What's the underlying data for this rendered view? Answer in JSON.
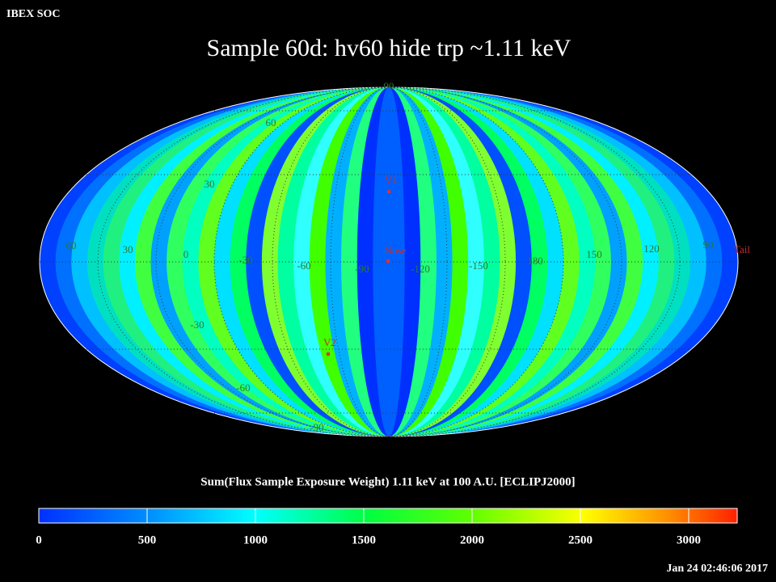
{
  "header": "IBEX SOC",
  "title": "Sample 60d: hv60 hide trp ~1.11 keV",
  "map": {
    "longitude_labels": [
      "60",
      "30",
      "0",
      "-30",
      "-60",
      "-90",
      "-120",
      "-150",
      "180",
      "150",
      "120",
      "90"
    ],
    "latitude_labels": [
      "90",
      "60",
      "30",
      "-30",
      "-60",
      "-90"
    ],
    "markers": [
      "V1",
      "Nose",
      "V2",
      "Tail"
    ]
  },
  "colorbar": {
    "label": "Sum(Flux Sample Exposure Weight)  1.11 keV at 100 A.U. [ECLIPJ2000]",
    "range": [
      0,
      3224
    ],
    "ticks": [
      0,
      500,
      1000,
      1500,
      2000,
      2500,
      3000
    ]
  },
  "timestamp": "Jan 24 02:46:06 2017"
}
